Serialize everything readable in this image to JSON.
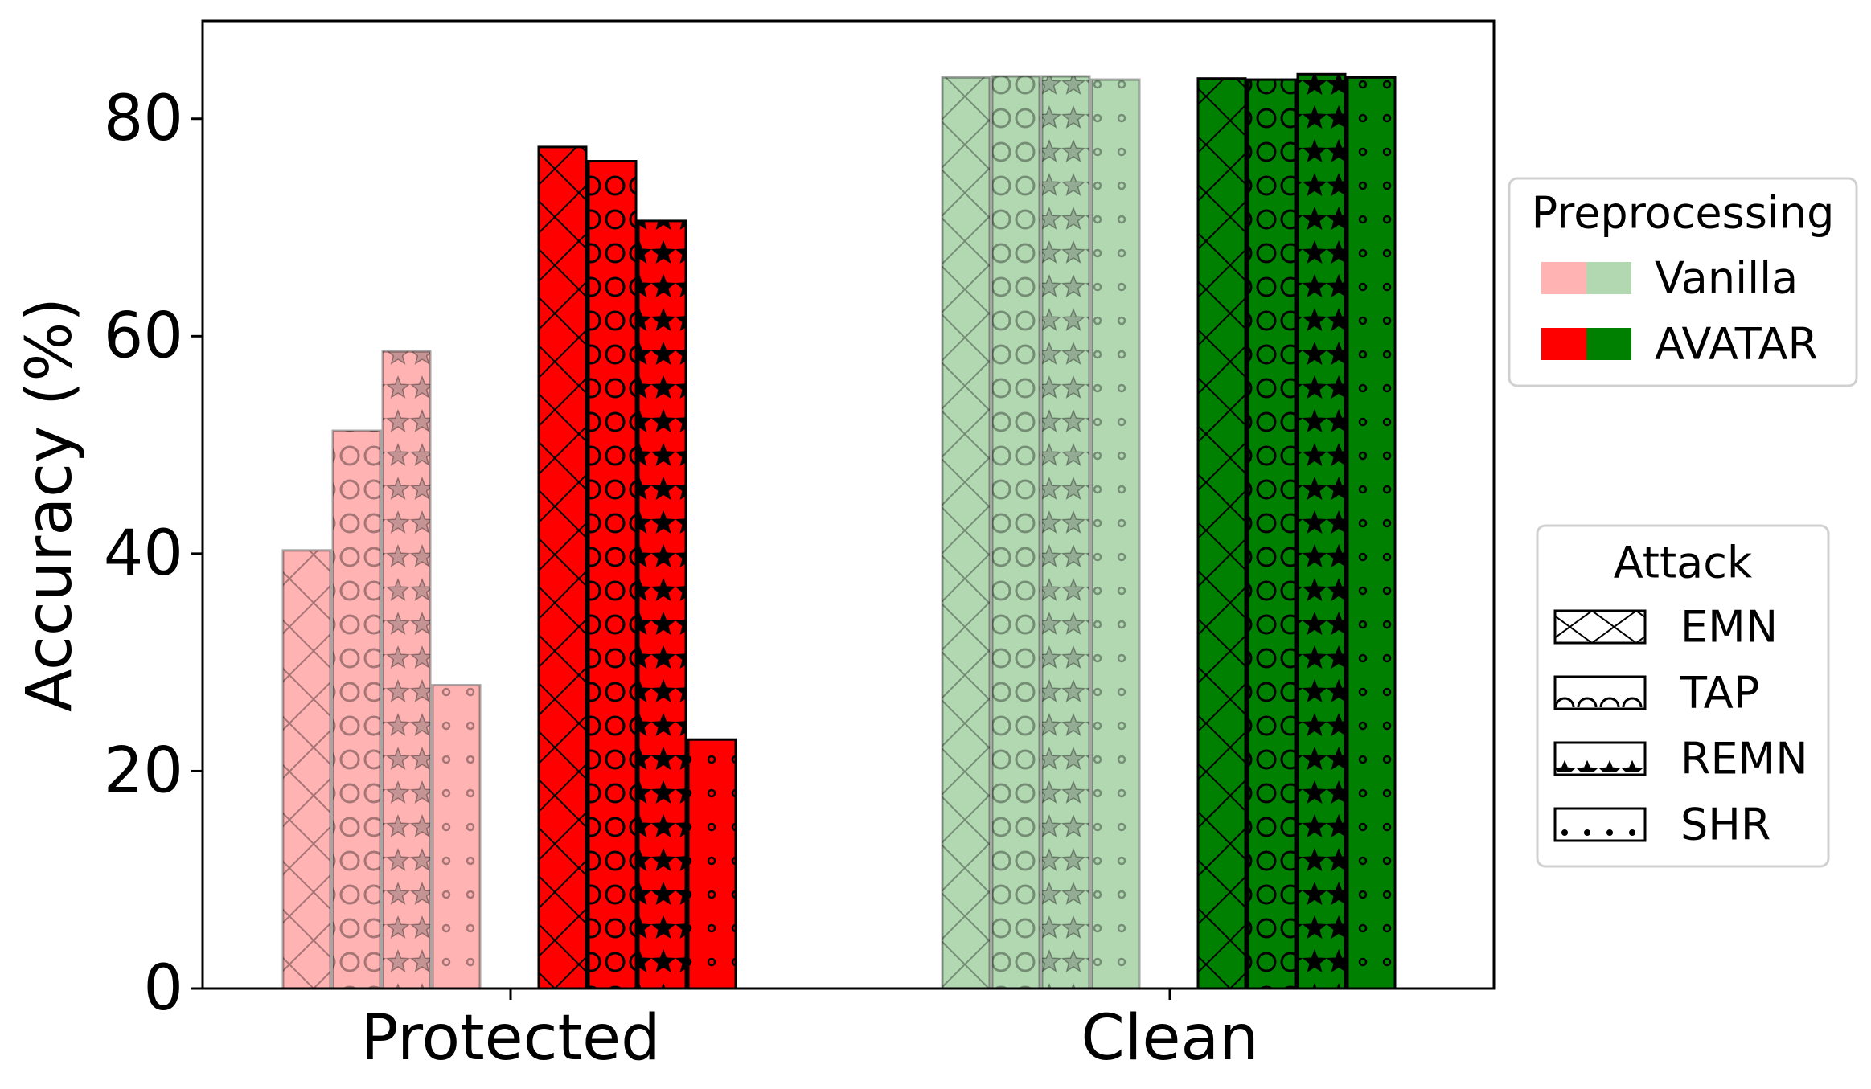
{
  "chart_data": {
    "type": "bar",
    "title": "",
    "xlabel": "",
    "ylabel": "Accuracy (%)",
    "categories": [
      "Protected",
      "Clean"
    ],
    "ylim": [
      0,
      89
    ],
    "yticks": [
      0,
      20,
      40,
      60,
      80
    ],
    "grid": false,
    "series": [
      {
        "preprocessing": "Vanilla",
        "attack": "EMN",
        "values": [
          40.3,
          83.8
        ]
      },
      {
        "preprocessing": "Vanilla",
        "attack": "TAP",
        "values": [
          51.3,
          83.9
        ]
      },
      {
        "preprocessing": "Vanilla",
        "attack": "REMN",
        "values": [
          58.6,
          83.9
        ]
      },
      {
        "preprocessing": "Vanilla",
        "attack": "SHR",
        "values": [
          27.9,
          83.6
        ]
      },
      {
        "preprocessing": "AVATAR",
        "attack": "EMN",
        "values": [
          77.4,
          83.7
        ]
      },
      {
        "preprocessing": "AVATAR",
        "attack": "TAP",
        "values": [
          76.1,
          83.6
        ]
      },
      {
        "preprocessing": "AVATAR",
        "attack": "REMN",
        "values": [
          70.6,
          84.1
        ]
      },
      {
        "preprocessing": "AVATAR",
        "attack": "SHR",
        "values": [
          22.9,
          83.8
        ]
      }
    ],
    "colors": {
      "Vanilla": {
        "Protected": "#ffb3b3",
        "Clean": "#b2d8b2"
      },
      "AVATAR": {
        "Protected": "#ff0000",
        "Clean": "#008000"
      }
    },
    "patterns": {
      "EMN": "cross-hatch",
      "TAP": "circles",
      "REMN": "stars",
      "SHR": "dots"
    },
    "legend_placement": "right",
    "legends": [
      {
        "title": "Preprocessing",
        "entries": [
          "Vanilla",
          "AVATAR"
        ]
      },
      {
        "title": "Attack",
        "entries": [
          "EMN",
          "TAP",
          "REMN",
          "SHR"
        ]
      }
    ]
  }
}
